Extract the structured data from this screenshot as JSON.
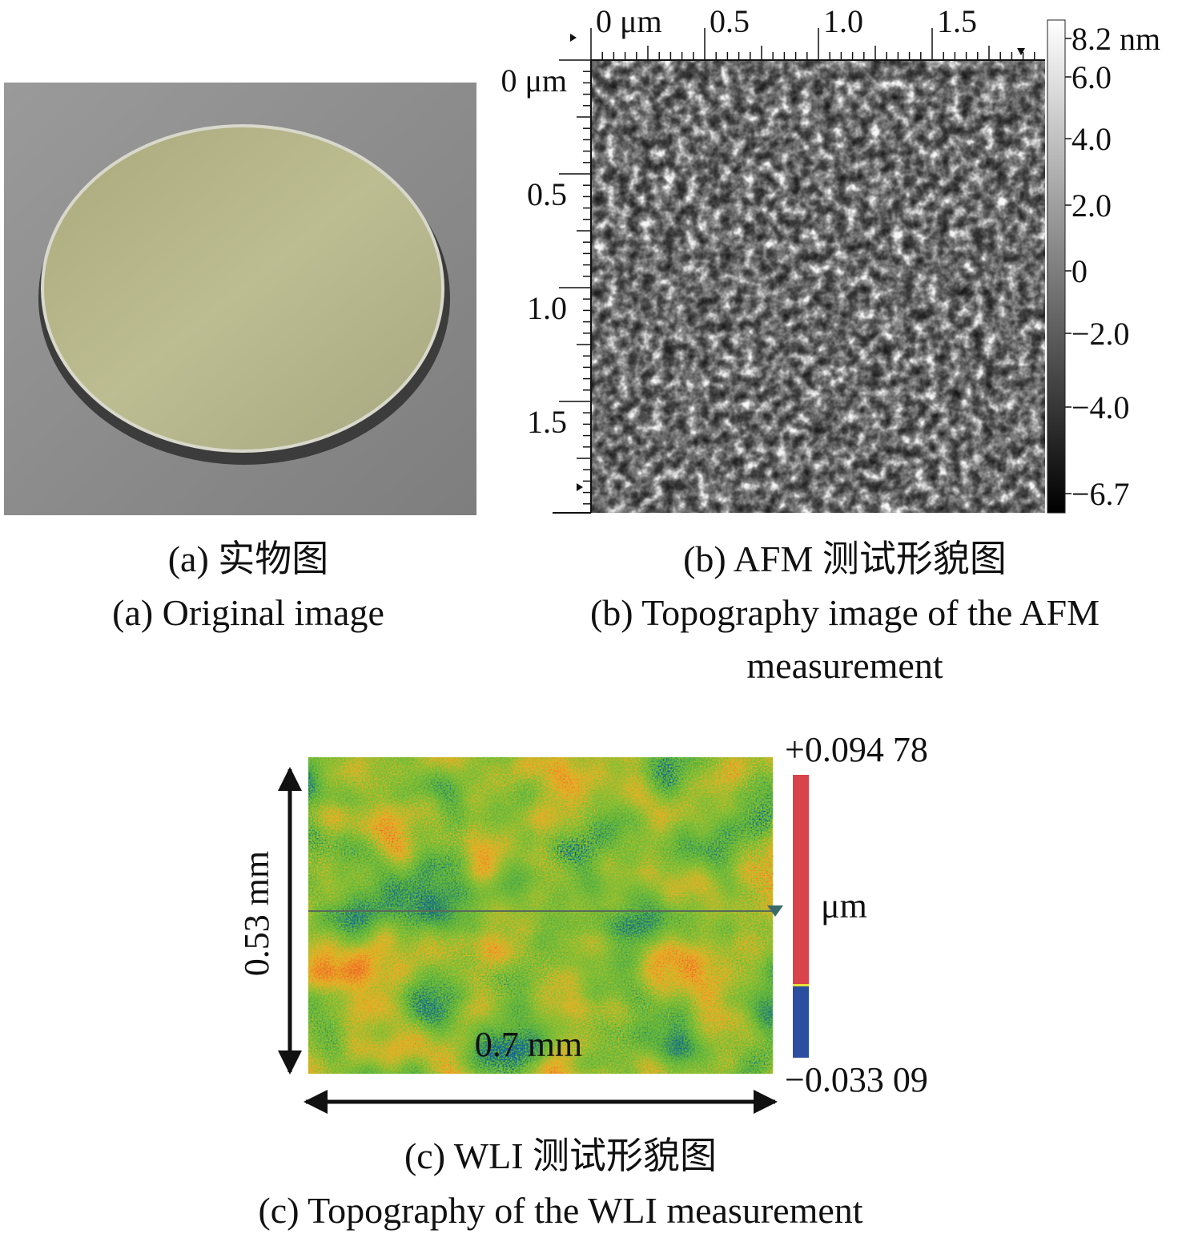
{
  "panels": [
    {
      "caption_cn": "(a) 实物图",
      "caption_en": "(a) Original image"
    },
    {
      "caption_cn": "(b) AFM 测试形貌图",
      "caption_en": "(b) Topography image of the AFM measurement",
      "x_ticks": [
        "0 μm",
        "0.5",
        "1.0",
        "1.5"
      ],
      "y_ticks": [
        "0 μm",
        "0.5",
        "1.0",
        "1.5"
      ],
      "colorbar_ticks": [
        "8.2 nm",
        "6.0",
        "4.0",
        "2.0",
        "0",
        "−2.0",
        "−4.0",
        "−6.7"
      ]
    },
    {
      "caption_cn": "(c) WLI 测试形貌图",
      "caption_en": "(c) Topography of the WLI measurement",
      "height_label": "0.53 mm",
      "width_label": "0.7 mm",
      "colorbar_max": "+0.094 78",
      "colorbar_unit": "μm",
      "colorbar_min": "−0.033 09"
    }
  ]
}
